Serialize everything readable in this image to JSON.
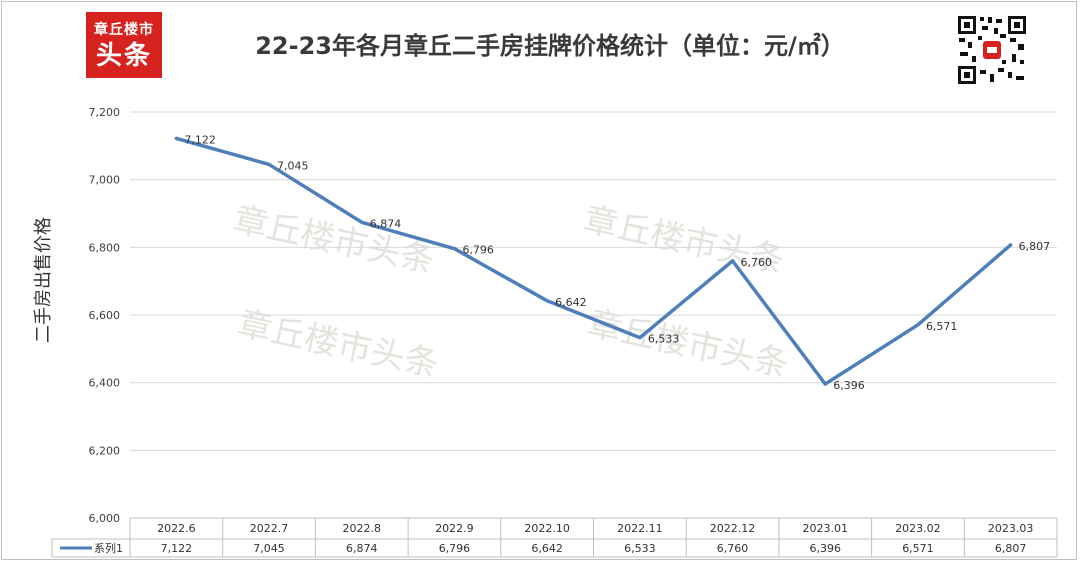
{
  "header": {
    "logo_line1": "章丘楼市",
    "logo_line2": "头条",
    "title": "22-23年各月章丘二手房挂牌价格统计（单位：元/㎡）"
  },
  "watermark": "章丘楼市头条",
  "chart_data": {
    "type": "line",
    "title": "22-23年各月章丘二手房挂牌价格统计（单位：元/㎡）",
    "ylabel": "二手房出售价格",
    "xlabel": "",
    "ylim": [
      6000,
      7200
    ],
    "yticks": [
      "6,000",
      "6,200",
      "6,400",
      "6,600",
      "6,800",
      "7,000",
      "7,200"
    ],
    "categories": [
      "2022.6",
      "2022.7",
      "2022.8",
      "2022.9",
      "2022.10",
      "2022.11",
      "2022.12",
      "2023.01",
      "2023.02",
      "2023.03"
    ],
    "series": [
      {
        "name": "系列1",
        "values": [
          7122,
          7045,
          6874,
          6796,
          6642,
          6533,
          6760,
          6396,
          6571,
          6807
        ],
        "labels": [
          "7,122",
          "7,045",
          "6,874",
          "6,796",
          "6,642",
          "6,533",
          "6,760",
          "6,396",
          "6,571",
          "6,807"
        ],
        "color": "#4f7fb8"
      }
    ],
    "grid": true,
    "data_table": true
  },
  "colors": {
    "brand_red": "#d6231f",
    "line": "#4f7fb8",
    "grid": "#d9d9d9",
    "watermark": "#e4e4de"
  }
}
